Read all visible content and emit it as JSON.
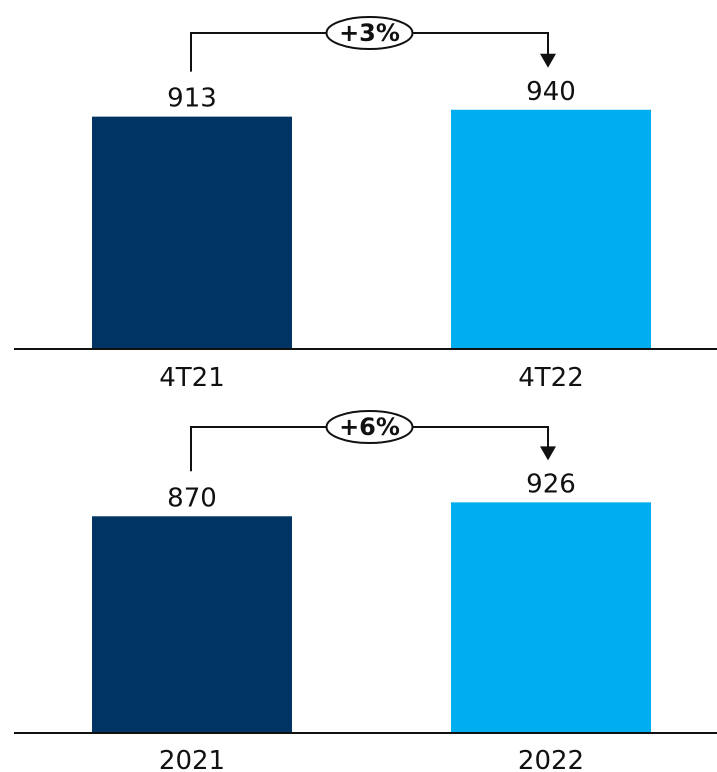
{
  "chart_data": [
    {
      "type": "bar",
      "title": "",
      "xlabel": "",
      "ylabel": "",
      "categories": [
        "4T21",
        "4T22"
      ],
      "values": [
        913,
        940
      ],
      "value_labels": [
        "913",
        "940"
      ],
      "colors": [
        "#003462",
        "#00AEEF"
      ],
      "change_label": "+3%",
      "grid": false,
      "legend": "none"
    },
    {
      "type": "bar",
      "title": "",
      "xlabel": "",
      "ylabel": "",
      "categories": [
        "2021",
        "2022"
      ],
      "values": [
        870,
        926
      ],
      "value_labels": [
        "870",
        "926"
      ],
      "colors": [
        "#003462",
        "#00AEEF"
      ],
      "change_label": "+6%",
      "grid": false,
      "legend": "none"
    }
  ]
}
